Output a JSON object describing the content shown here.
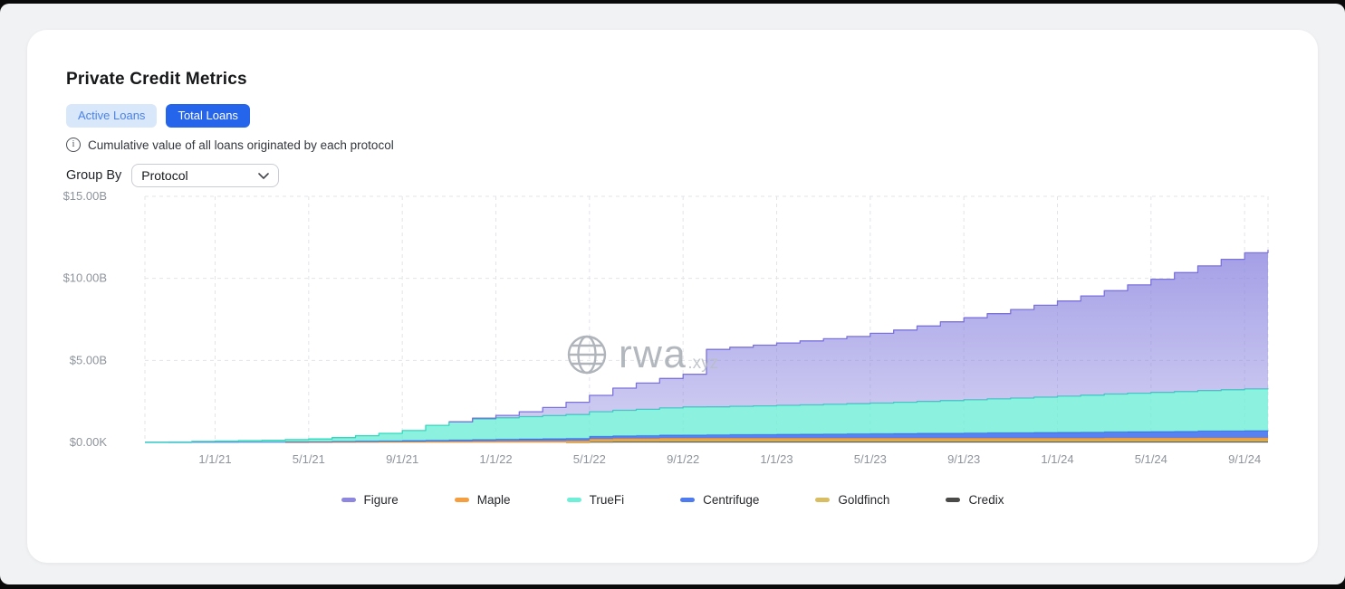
{
  "page": {
    "title": "Private Credit Metrics",
    "tabs": [
      {
        "label": "Active Loans",
        "active": false
      },
      {
        "label": "Total Loans",
        "active": true
      }
    ],
    "description": "Cumulative value of all loans originated by each protocol",
    "group_by": {
      "label": "Group By",
      "selected": "Protocol"
    },
    "watermark": {
      "name": "rwa",
      "suffix": ".xyz"
    },
    "colors": {
      "accent_blue": "#2465eb",
      "tab_inactive_bg": "#d9e7fb",
      "tab_inactive_text": "#4b83e8"
    }
  },
  "chart_data": {
    "type": "area",
    "stacked": true,
    "interpolation": "step-after",
    "title": "Private Credit Metrics — Total Loans by Protocol",
    "xlabel": "",
    "ylabel": "",
    "unit": "USD billions",
    "ylim": [
      0,
      15
    ],
    "grid": "dashed",
    "legend_position": "bottom",
    "y_ticks": [
      {
        "value": 0,
        "label": "$0.00K"
      },
      {
        "value": 5,
        "label": "$5.00B"
      },
      {
        "value": 10,
        "label": "$10.00B"
      },
      {
        "value": 15,
        "label": "$15.00B"
      }
    ],
    "x_ticks": [
      "1/1/21",
      "5/1/21",
      "9/1/21",
      "1/1/22",
      "5/1/22",
      "9/1/22",
      "1/1/23",
      "5/1/23",
      "9/1/23",
      "1/1/24",
      "5/1/24",
      "9/1/24"
    ],
    "x_domain": [
      "2020-10",
      "2024-10"
    ],
    "x_months": [
      "2020-10",
      "2020-11",
      "2020-12",
      "2021-01",
      "2021-02",
      "2021-03",
      "2021-04",
      "2021-05",
      "2021-06",
      "2021-07",
      "2021-08",
      "2021-09",
      "2021-10",
      "2021-11",
      "2021-12",
      "2022-01",
      "2022-02",
      "2022-03",
      "2022-04",
      "2022-05",
      "2022-06",
      "2022-07",
      "2022-08",
      "2022-09",
      "2022-10",
      "2022-11",
      "2022-12",
      "2023-01",
      "2023-02",
      "2023-03",
      "2023-04",
      "2023-05",
      "2023-06",
      "2023-07",
      "2023-08",
      "2023-09",
      "2023-10",
      "2023-11",
      "2023-12",
      "2024-01",
      "2024-02",
      "2024-03",
      "2024-04",
      "2024-05",
      "2024-06",
      "2024-07",
      "2024-08",
      "2024-09",
      "2024-10"
    ],
    "stack_order": "bottom-to-top",
    "series": [
      {
        "name": "Credix",
        "color": "#4a4a48",
        "stroke": "#3c3c3a",
        "opacity": 0.95,
        "values": [
          0,
          0,
          0,
          0,
          0,
          0,
          0,
          0,
          0,
          0,
          0,
          0,
          0,
          0,
          0,
          0,
          0,
          0,
          0,
          0.03,
          0.04,
          0.04,
          0.05,
          0.05,
          0.05,
          0.05,
          0.05,
          0.05,
          0.05,
          0.05,
          0.05,
          0.05,
          0.05,
          0.05,
          0.05,
          0.05,
          0.05,
          0.05,
          0.05,
          0.05,
          0.05,
          0.05,
          0.05,
          0.05,
          0.05,
          0.05,
          0.05,
          0.05,
          0.05
        ]
      },
      {
        "name": "Goldfinch",
        "color": "#d9bd62",
        "stroke": "#c9ac4e",
        "opacity": 0.95,
        "values": [
          0,
          0,
          0,
          0,
          0,
          0,
          0,
          0,
          0,
          0,
          0,
          0,
          0,
          0,
          0,
          0,
          0,
          0,
          0,
          0.08,
          0.09,
          0.09,
          0.1,
          0.1,
          0.1,
          0.1,
          0.1,
          0.1,
          0.1,
          0.1,
          0.1,
          0.1,
          0.1,
          0.1,
          0.1,
          0.1,
          0.1,
          0.1,
          0.1,
          0.1,
          0.1,
          0.1,
          0.1,
          0.1,
          0.1,
          0.1,
          0.1,
          0.1,
          0.1
        ]
      },
      {
        "name": "Maple",
        "color": "#f59e3f",
        "stroke": "#e88d28",
        "opacity": 0.95,
        "values": [
          0,
          0,
          0,
          0,
          0,
          0,
          0,
          0.01,
          0.02,
          0.03,
          0.04,
          0.05,
          0.06,
          0.07,
          0.08,
          0.09,
          0.1,
          0.1,
          0.11,
          0.11,
          0.12,
          0.12,
          0.12,
          0.12,
          0.12,
          0.12,
          0.12,
          0.12,
          0.12,
          0.12,
          0.12,
          0.12,
          0.12,
          0.12,
          0.12,
          0.12,
          0.12,
          0.12,
          0.12,
          0.12,
          0.12,
          0.13,
          0.13,
          0.13,
          0.13,
          0.14,
          0.14,
          0.14,
          0.14
        ]
      },
      {
        "name": "Centrifuge",
        "color": "#4f7bf0",
        "stroke": "#3d64e0",
        "opacity": 0.95,
        "values": [
          0.01,
          0.01,
          0.02,
          0.02,
          0.03,
          0.03,
          0.04,
          0.04,
          0.05,
          0.06,
          0.06,
          0.07,
          0.08,
          0.09,
          0.1,
          0.11,
          0.12,
          0.13,
          0.14,
          0.15,
          0.16,
          0.17,
          0.18,
          0.19,
          0.2,
          0.21,
          0.22,
          0.23,
          0.24,
          0.25,
          0.26,
          0.27,
          0.28,
          0.29,
          0.3,
          0.31,
          0.32,
          0.33,
          0.34,
          0.35,
          0.36,
          0.37,
          0.38,
          0.39,
          0.4,
          0.41,
          0.42,
          0.43,
          0.44
        ]
      },
      {
        "name": "TrueFi",
        "color": "#6fefd7",
        "stroke": "#2fd9bd",
        "opacity": 0.8,
        "values": [
          0.01,
          0.02,
          0.04,
          0.06,
          0.08,
          0.1,
          0.13,
          0.16,
          0.22,
          0.32,
          0.45,
          0.6,
          0.9,
          1.1,
          1.25,
          1.3,
          1.35,
          1.4,
          1.45,
          1.5,
          1.55,
          1.6,
          1.65,
          1.7,
          1.7,
          1.72,
          1.74,
          1.76,
          1.78,
          1.8,
          1.83,
          1.86,
          1.9,
          1.94,
          1.98,
          2.02,
          2.06,
          2.1,
          2.15,
          2.2,
          2.25,
          2.3,
          2.34,
          2.38,
          2.42,
          2.46,
          2.5,
          2.54,
          2.56
        ]
      },
      {
        "name": "Figure",
        "color": "#8d87e0",
        "stroke": "#7b72dc",
        "opacity": 0.6,
        "gradient": true,
        "values": [
          0,
          0,
          0,
          0,
          0,
          0,
          0,
          0,
          0,
          0,
          0,
          0,
          0,
          0,
          0.05,
          0.15,
          0.3,
          0.5,
          0.75,
          1,
          1.35,
          1.6,
          1.8,
          2,
          3.5,
          3.6,
          3.7,
          3.8,
          3.9,
          4,
          4.1,
          4.25,
          4.4,
          4.6,
          4.8,
          5,
          5.2,
          5.4,
          5.6,
          5.8,
          6.05,
          6.3,
          6.6,
          6.9,
          7.25,
          7.6,
          7.95,
          8.3,
          8.45
        ]
      }
    ],
    "legend": [
      {
        "label": "Figure",
        "color": "#8d87e0"
      },
      {
        "label": "Maple",
        "color": "#f59e3f"
      },
      {
        "label": "TrueFi",
        "color": "#6fefd7"
      },
      {
        "label": "Centrifuge",
        "color": "#4f7bf0"
      },
      {
        "label": "Goldfinch",
        "color": "#d9bd62"
      },
      {
        "label": "Credix",
        "color": "#4a4a48"
      }
    ]
  }
}
